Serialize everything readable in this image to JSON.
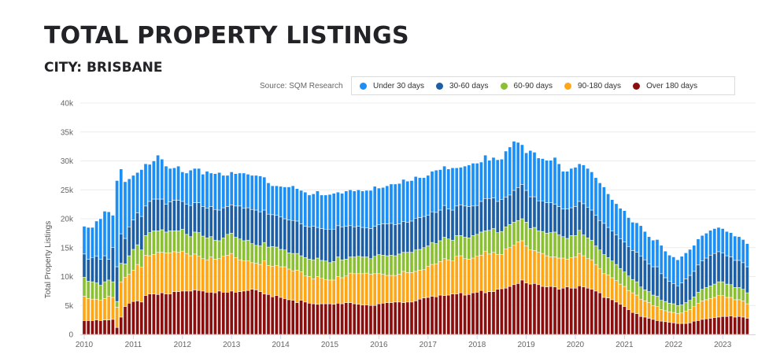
{
  "header": {
    "title": "TOTAL PROPERTY LISTINGS",
    "subtitle": "CITY: BRISBANE"
  },
  "source_label": "Source: SQM Research",
  "chart_data": {
    "type": "bar",
    "stacked": true,
    "title": "TOTAL PROPERTY LISTINGS",
    "subtitle": "CITY: BRISBANE",
    "xlabel": "",
    "ylabel": "Total Property Listings",
    "ylim": [
      0,
      40000
    ],
    "yticks": [
      0,
      5000,
      10000,
      15000,
      20000,
      25000,
      30000,
      35000,
      40000
    ],
    "ytick_labels": [
      "0",
      "5k",
      "10k",
      "15k",
      "20k",
      "25k",
      "30k",
      "35k",
      "40k"
    ],
    "xticks": [
      "2010",
      "2011",
      "2012",
      "2013",
      "2014",
      "2015",
      "2016",
      "2017",
      "2018",
      "2019",
      "2020",
      "2021",
      "2022",
      "2023"
    ],
    "x_start": "2010-01",
    "x_frequency": "monthly",
    "grid": true,
    "legend_position": "top-right",
    "series": [
      {
        "name": "Over 180 days",
        "color": "#8b0e0e",
        "values": [
          2400,
          2400,
          2400,
          2500,
          2400,
          2500,
          2500,
          2600,
          1200,
          3000,
          4800,
          5400,
          5700,
          5800,
          5600,
          6700,
          7000,
          7000,
          6900,
          7200,
          7000,
          7000,
          7400,
          7400,
          7500,
          7500,
          7500,
          7700,
          7600,
          7500,
          7300,
          7300,
          7200,
          7500,
          7300,
          7300,
          7500,
          7300,
          7400,
          7500,
          7600,
          7800,
          7700,
          7400,
          7000,
          6900,
          6500,
          6700,
          6400,
          6200,
          6000,
          5900,
          5500,
          5900,
          5600,
          5400,
          5300,
          5200,
          5300,
          5300,
          5300,
          5200,
          5400,
          5300,
          5500,
          5500,
          5300,
          5200,
          5100,
          5100,
          5000,
          5000,
          5300,
          5400,
          5500,
          5500,
          5600,
          5600,
          5500,
          5600,
          5600,
          5800,
          6100,
          6300,
          6400,
          6600,
          6500,
          6800,
          6700,
          6800,
          7000,
          7000,
          7200,
          6800,
          6900,
          7200,
          7300,
          7600,
          7200,
          7400,
          7400,
          7800,
          7900,
          8000,
          8300,
          8600,
          8800,
          9400,
          8900,
          8700,
          8800,
          8600,
          8300,
          8200,
          8300,
          8200,
          7800,
          8000,
          8200,
          8000,
          8000,
          8400,
          8200,
          8000,
          7800,
          7500,
          7200,
          6400,
          6300,
          6000,
          5600,
          5200,
          4800,
          4300,
          3800,
          3600,
          3100,
          3000,
          2800,
          2600,
          2400,
          2300,
          2200,
          2100,
          2000,
          1900,
          1900,
          1900,
          2000,
          2300,
          2400,
          2600,
          2700,
          2800,
          2900,
          3000,
          3100,
          3100,
          3200,
          3000,
          3100,
          3000,
          2800
        ]
      },
      {
        "name": "90-180 days",
        "color": "#ffa616",
        "values": [
          4200,
          3800,
          3700,
          3600,
          3500,
          3700,
          4100,
          3800,
          3500,
          6100,
          5100,
          5000,
          5400,
          6300,
          6000,
          7000,
          6600,
          6800,
          7300,
          7000,
          7100,
          7100,
          6900,
          6800,
          6900,
          6500,
          6100,
          6200,
          5900,
          5600,
          5600,
          6100,
          5800,
          5600,
          6200,
          6400,
          6500,
          6000,
          5500,
          5200,
          5100,
          4600,
          4600,
          4700,
          5700,
          5000,
          5300,
          5200,
          5300,
          5500,
          5300,
          5100,
          5600,
          4900,
          4500,
          4600,
          4300,
          4800,
          4400,
          4200,
          4100,
          4200,
          4600,
          4500,
          4600,
          5100,
          5200,
          5300,
          5400,
          5500,
          5400,
          5500,
          5200,
          5000,
          4700,
          4700,
          4600,
          4800,
          5400,
          5100,
          5100,
          5100,
          5000,
          4900,
          5400,
          5500,
          5700,
          5800,
          6400,
          6100,
          5700,
          6500,
          6400,
          6300,
          6100,
          6000,
          6200,
          6100,
          7200,
          6500,
          6800,
          6000,
          5900,
          6800,
          6700,
          6800,
          7200,
          6800,
          6400,
          5900,
          5700,
          5600,
          5700,
          5400,
          5100,
          5200,
          5400,
          5200,
          4800,
          5300,
          5400,
          5600,
          5400,
          5100,
          5100,
          4600,
          4200,
          4100,
          4000,
          3800,
          3700,
          3500,
          3500,
          3300,
          3400,
          3200,
          3000,
          2800,
          2700,
          2400,
          2400,
          2000,
          1900,
          1800,
          1800,
          1700,
          1800,
          2100,
          2300,
          2500,
          3000,
          3200,
          3300,
          3400,
          3500,
          3700,
          3600,
          3300,
          3200,
          3000,
          2900,
          2800,
          2500
        ]
      },
      {
        "name": "60-90 days",
        "color": "#8bc034",
        "values": [
          3300,
          3000,
          3000,
          2800,
          2600,
          2900,
          2800,
          2700,
          1000,
          3200,
          2300,
          3200,
          3600,
          3400,
          3000,
          3400,
          4000,
          4100,
          3700,
          3900,
          3600,
          3800,
          3600,
          3700,
          3800,
          3300,
          3300,
          3800,
          4100,
          3900,
          3800,
          3500,
          3300,
          3100,
          3200,
          3600,
          3500,
          3500,
          3600,
          3500,
          3600,
          3300,
          3100,
          3200,
          3200,
          3200,
          3400,
          3200,
          3000,
          2900,
          2800,
          3000,
          2900,
          2800,
          3200,
          3000,
          3300,
          3200,
          3100,
          3200,
          3000,
          3200,
          3400,
          3100,
          2900,
          2800,
          2900,
          3000,
          2900,
          2800,
          2700,
          3000,
          3300,
          3300,
          3400,
          3500,
          3400,
          3500,
          3300,
          3500,
          3500,
          3700,
          3600,
          3800,
          3500,
          3800,
          3500,
          3600,
          3700,
          3600,
          3600,
          3600,
          3500,
          3700,
          3700,
          3900,
          3800,
          4000,
          3500,
          4100,
          4100,
          3800,
          4000,
          3800,
          4000,
          4000,
          3700,
          3800,
          4100,
          3700,
          4000,
          3700,
          3800,
          3900,
          4200,
          4300,
          4000,
          3700,
          3600,
          3800,
          3700,
          4000,
          3600,
          3600,
          3400,
          3200,
          3200,
          3300,
          3000,
          2900,
          2800,
          2700,
          2500,
          2500,
          2300,
          2300,
          2100,
          1900,
          1900,
          1800,
          1800,
          1600,
          1600,
          1500,
          1500,
          1400,
          1400,
          1500,
          1600,
          1700,
          1900,
          2000,
          2100,
          2200,
          2300,
          2400,
          2400,
          2300,
          2200,
          2100,
          2100,
          2000,
          1900
        ]
      },
      {
        "name": "30-60 days",
        "color": "#1d5fa6",
        "values": [
          4000,
          3800,
          4200,
          4600,
          4500,
          4500,
          3600,
          5900,
          6000,
          5100,
          4400,
          5000,
          5100,
          5500,
          5800,
          5100,
          5400,
          5500,
          5500,
          5300,
          4800,
          5000,
          5300,
          5300,
          4800,
          5200,
          5400,
          5100,
          5200,
          5100,
          5100,
          5200,
          5300,
          5300,
          5200,
          4800,
          4900,
          5400,
          5700,
          5600,
          5600,
          5900,
          6100,
          5900,
          5600,
          5700,
          5500,
          5500,
          5600,
          5400,
          5700,
          5700,
          5600,
          5500,
          5400,
          5600,
          5800,
          5300,
          5500,
          5500,
          5800,
          5600,
          5400,
          5700,
          5700,
          5400,
          5200,
          5200,
          5100,
          5000,
          5200,
          5200,
          5200,
          5400,
          5500,
          5500,
          5400,
          5200,
          5300,
          5200,
          5400,
          5500,
          5500,
          5400,
          5300,
          5300,
          5400,
          5300,
          5500,
          5200,
          5200,
          5100,
          5300,
          5400,
          5400,
          5100,
          5000,
          5300,
          5600,
          5500,
          5300,
          5400,
          5500,
          5100,
          5100,
          5500,
          5700,
          5900,
          5500,
          5500,
          5300,
          5200,
          5300,
          5300,
          5200,
          4800,
          4900,
          4800,
          5100,
          4800,
          5000,
          5000,
          5400,
          5300,
          5200,
          5300,
          5100,
          5400,
          5200,
          5200,
          5100,
          5100,
          5200,
          5100,
          5000,
          5100,
          5300,
          5200,
          4800,
          4900,
          5100,
          4600,
          4100,
          3800,
          3500,
          3400,
          3800,
          4100,
          4300,
          4400,
          4700,
          4900,
          5100,
          5300,
          5300,
          5200,
          5000,
          4900,
          4800,
          4700,
          4700,
          4600,
          4500
        ]
      },
      {
        "name": "Under 30 days",
        "color": "#1b8ff5",
        "values": [
          4800,
          5500,
          5200,
          6100,
          7000,
          7700,
          8200,
          5600,
          14900,
          11200,
          9800,
          8300,
          7700,
          7000,
          8100,
          7300,
          6400,
          6600,
          7600,
          6900,
          6600,
          5800,
          5600,
          5900,
          5100,
          5400,
          6100,
          5900,
          5900,
          5600,
          6400,
          5800,
          6200,
          6500,
          5600,
          5400,
          5700,
          5600,
          5700,
          6100,
          5800,
          5900,
          6000,
          6200,
          5700,
          5400,
          5000,
          5100,
          5300,
          5500,
          5700,
          6000,
          5600,
          5800,
          5900,
          5500,
          5600,
          6300,
          5800,
          5900,
          6000,
          6200,
          5800,
          5800,
          6100,
          6200,
          6200,
          6300,
          6300,
          6500,
          6600,
          6900,
          6300,
          6300,
          6600,
          6800,
          7000,
          7000,
          7300,
          7100,
          7000,
          7200,
          6900,
          6700,
          6900,
          7000,
          7300,
          7000,
          6800,
          6900,
          7300,
          6600,
          6500,
          6900,
          7200,
          7400,
          7300,
          6800,
          7500,
          6600,
          7000,
          7200,
          7000,
          8000,
          8300,
          8500,
          7800,
          6900,
          6500,
          8000,
          7700,
          7400,
          7300,
          7300,
          7300,
          8100,
          7400,
          6500,
          6500,
          6800,
          6800,
          6500,
          6700,
          6700,
          6600,
          6500,
          6500,
          6300,
          5800,
          5400,
          5400,
          5300,
          5400,
          5000,
          4900,
          5100,
          5300,
          4900,
          4700,
          4600,
          4700,
          4900,
          4600,
          4500,
          4600,
          4500,
          4600,
          4500,
          4500,
          4500,
          4500,
          4400,
          4300,
          4300,
          4300,
          4200,
          4200,
          4200,
          4200,
          4200,
          4100,
          4000,
          4000
        ]
      }
    ]
  }
}
